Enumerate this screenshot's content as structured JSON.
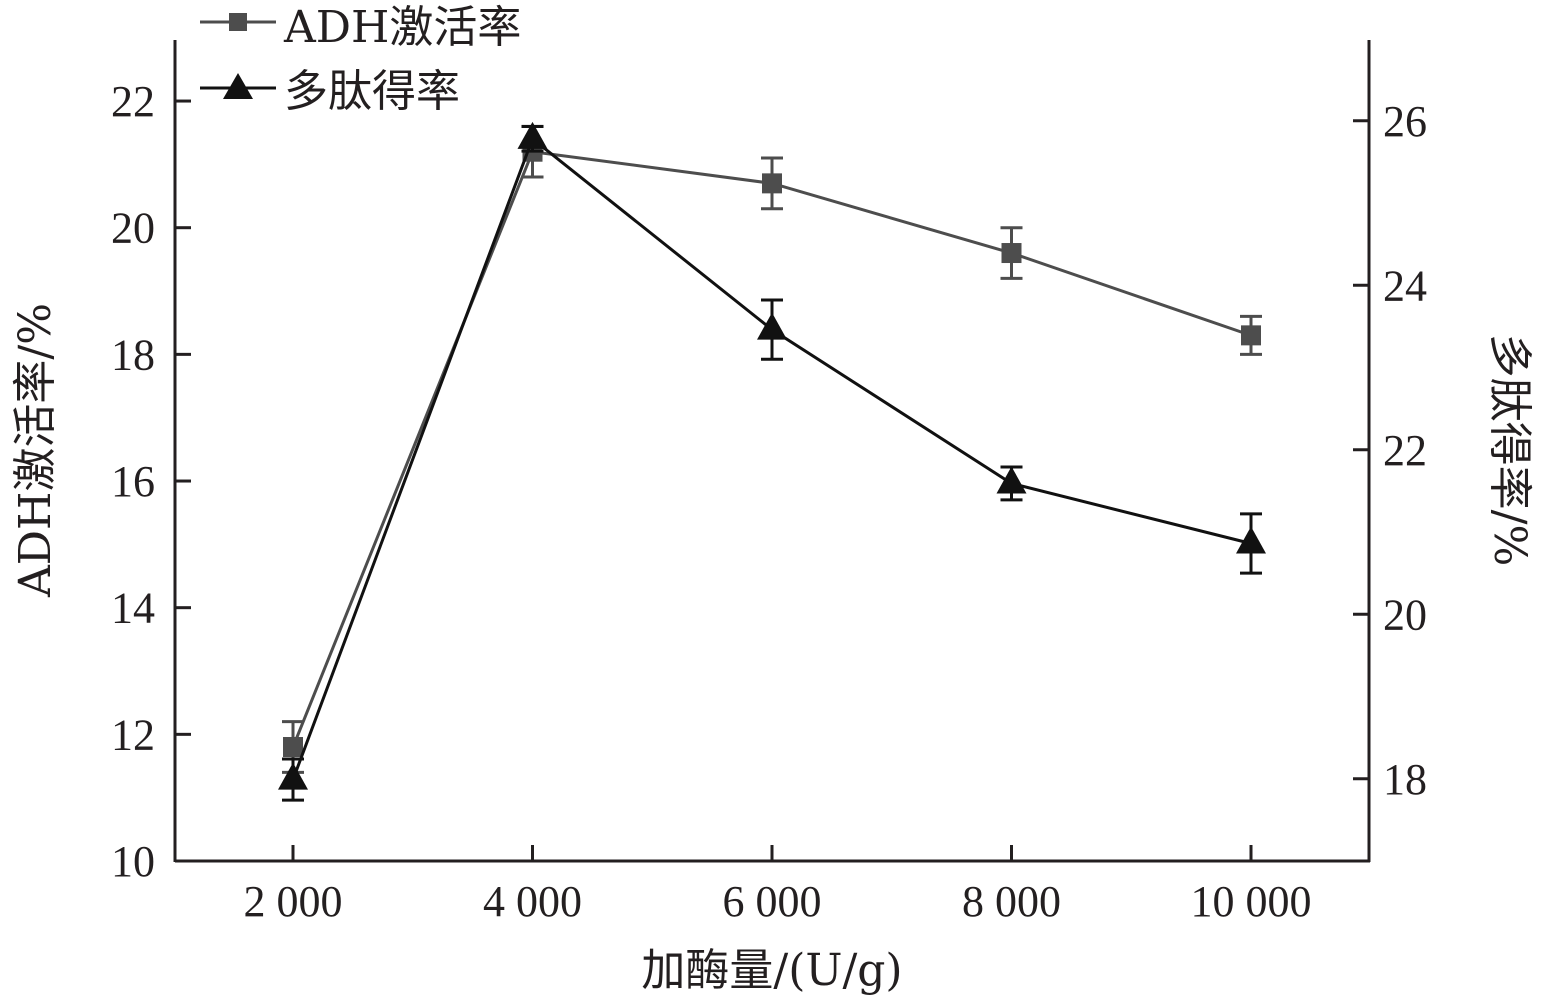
{
  "chart_data": {
    "type": "line",
    "xlabel": "加酶量/(U/g)",
    "ylabel_left": "ADH激活率/%",
    "ylabel_right": "多肽得率/%",
    "categories": [
      "2 000",
      "4 000",
      "6 000",
      "8 000",
      "10 000"
    ],
    "x": [
      2000,
      4000,
      6000,
      8000,
      10000
    ],
    "ylim_left": [
      10,
      23
    ],
    "ylim_right": [
      17,
      27
    ],
    "yticks_left": [
      "10",
      "12",
      "14",
      "16",
      "18",
      "20",
      "22"
    ],
    "yticks_right": [
      "18",
      "20",
      "22",
      "24",
      "26"
    ],
    "legend_position": "top-left",
    "series": [
      {
        "name": "ADH激活率",
        "axis": "left",
        "marker": "square",
        "color": "#4d4d4d",
        "values": [
          11.8,
          21.2,
          20.7,
          19.6,
          18.3
        ],
        "errors": [
          0.4,
          0.4,
          0.4,
          0.4,
          0.3
        ]
      },
      {
        "name": "多肽得率",
        "axis": "right",
        "marker": "triangle",
        "color": "#111111",
        "values": [
          17.99,
          25.78,
          23.46,
          21.59,
          20.86
        ],
        "errors": [
          0.25,
          0.15,
          0.36,
          0.2,
          0.36
        ]
      }
    ]
  }
}
